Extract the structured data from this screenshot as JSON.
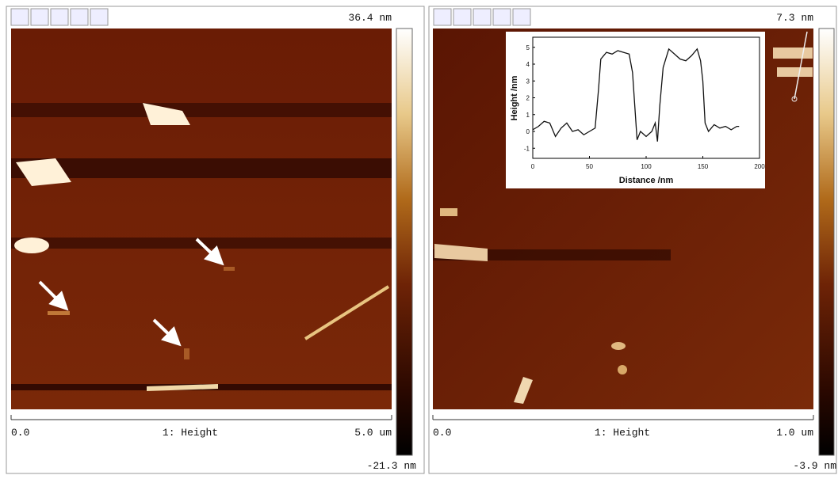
{
  "panels": [
    {
      "scale_max": "36.4 nm",
      "scale_min": "-21.3 nm",
      "x_start": "0.0",
      "channel": "1: Height",
      "x_end": "5.0 um"
    },
    {
      "scale_max": "7.3 nm",
      "scale_min": "-3.9 nm",
      "x_start": "0.0",
      "channel": "1: Height",
      "x_end": "1.0 um"
    }
  ],
  "chart_data": {
    "type": "line",
    "xlabel": "Distance /nm",
    "ylabel": "Height /nm",
    "x": [
      0,
      5,
      10,
      15,
      20,
      25,
      30,
      35,
      40,
      45,
      50,
      55,
      58,
      60,
      65,
      70,
      75,
      80,
      85,
      88,
      90,
      92,
      95,
      100,
      105,
      108,
      110,
      112,
      115,
      120,
      125,
      130,
      135,
      140,
      145,
      148,
      150,
      152,
      155,
      160,
      165,
      170,
      175,
      180,
      182
    ],
    "values": [
      0.1,
      0.3,
      0.6,
      0.5,
      -0.3,
      0.2,
      0.5,
      0,
      0.1,
      -0.2,
      0,
      0.2,
      2.5,
      4.3,
      4.7,
      4.6,
      4.8,
      4.7,
      4.6,
      3.5,
      1.5,
      -0.5,
      0,
      -0.3,
      0,
      0.5,
      -0.6,
      1.5,
      3.8,
      4.9,
      4.6,
      4.3,
      4.2,
      4.5,
      4.9,
      4.2,
      3,
      0.5,
      0,
      0.4,
      0.2,
      0.3,
      0.1,
      0.3,
      0.3
    ],
    "color": "#111111",
    "xlim": [
      0,
      200
    ],
    "xticks": [
      0,
      50,
      100,
      150,
      200
    ],
    "ylim": [
      -1.6,
      5.6
    ],
    "yticks": [
      -1,
      0,
      1,
      2,
      3,
      4,
      5
    ]
  }
}
